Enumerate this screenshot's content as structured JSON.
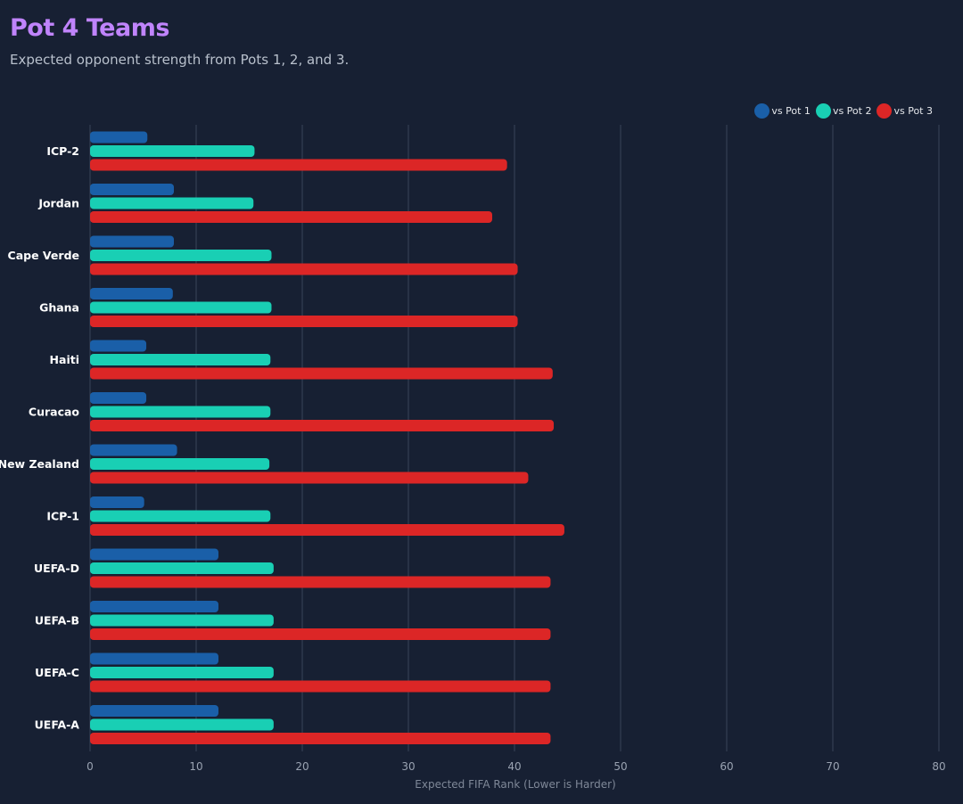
{
  "header": {
    "title": "Pot 4 Teams",
    "subtitle": "Expected opponent strength from Pots 1, 2, and 3."
  },
  "colors": {
    "background": "#172033",
    "title": "#c084fc",
    "grid": "#3a4559",
    "tick_label": "#9aa3b2",
    "axis_label": "#7f8898",
    "category_label": "#ffffff"
  },
  "chart_data": {
    "type": "bar",
    "orientation": "horizontal",
    "categories": [
      "ICP-2",
      "Jordan",
      "Cape Verde",
      "Ghana",
      "Haiti",
      "Curacao",
      "New Zealand",
      "ICP-1",
      "UEFA-D",
      "UEFA-B",
      "UEFA-C",
      "UEFA-A"
    ],
    "series": [
      {
        "name": "vs Pot 1",
        "color": "#1a5fa8",
        "values": [
          5.4,
          7.9,
          7.9,
          7.8,
          5.3,
          5.3,
          8.2,
          5.1,
          12.1,
          12.1,
          12.1,
          12.1
        ]
      },
      {
        "name": "vs Pot 2",
        "color": "#19cfb4",
        "values": [
          15.5,
          15.4,
          17.1,
          17.1,
          17.0,
          17.0,
          16.9,
          17.0,
          17.3,
          17.3,
          17.3,
          17.3
        ]
      },
      {
        "name": "vs Pot 3",
        "color": "#dc2626",
        "values": [
          39.3,
          37.9,
          40.3,
          40.3,
          43.6,
          43.7,
          41.3,
          44.7,
          43.4,
          43.4,
          43.4,
          43.4
        ]
      }
    ],
    "xlabel": "Expected FIFA Rank (Lower is Harder)",
    "ylabel": "",
    "xlim": [
      0,
      80
    ],
    "xticks": [
      0,
      10,
      20,
      30,
      40,
      50,
      60,
      70,
      80
    ],
    "grid": true,
    "legend": "top-right"
  }
}
